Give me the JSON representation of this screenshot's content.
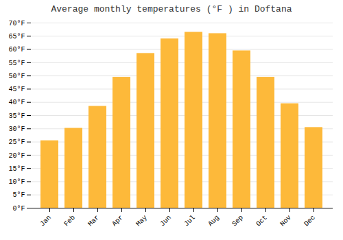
{
  "chart_data": {
    "type": "bar",
    "title": "Average monthly temperatures (°F ) in Doftana",
    "categories": [
      "Jan",
      "Feb",
      "Mar",
      "Apr",
      "May",
      "Jun",
      "Jul",
      "Aug",
      "Sep",
      "Oct",
      "Nov",
      "Dec"
    ],
    "values": [
      25.5,
      30.2,
      38.5,
      49.5,
      58.5,
      64.0,
      66.5,
      66.0,
      59.5,
      49.5,
      39.5,
      30.5
    ],
    "color": "#FDB93A",
    "ylim": [
      0,
      70
    ],
    "yticks": [
      {
        "value": 0,
        "label": "0°F"
      },
      {
        "value": 5,
        "label": "5°F"
      },
      {
        "value": 10,
        "label": "10°F"
      },
      {
        "value": 15,
        "label": "15°F"
      },
      {
        "value": 20,
        "label": "20°F"
      },
      {
        "value": 25,
        "label": "25°F"
      },
      {
        "value": 30,
        "label": "30°F"
      },
      {
        "value": 35,
        "label": "35°F"
      },
      {
        "value": 40,
        "label": "40°F"
      },
      {
        "value": 45,
        "label": "45°F"
      },
      {
        "value": 50,
        "label": "50°F"
      },
      {
        "value": 55,
        "label": "55°F"
      },
      {
        "value": 60,
        "label": "60°F"
      },
      {
        "value": 65,
        "label": "65°F"
      },
      {
        "value": 70,
        "label": "70°F"
      }
    ],
    "grid": true
  }
}
